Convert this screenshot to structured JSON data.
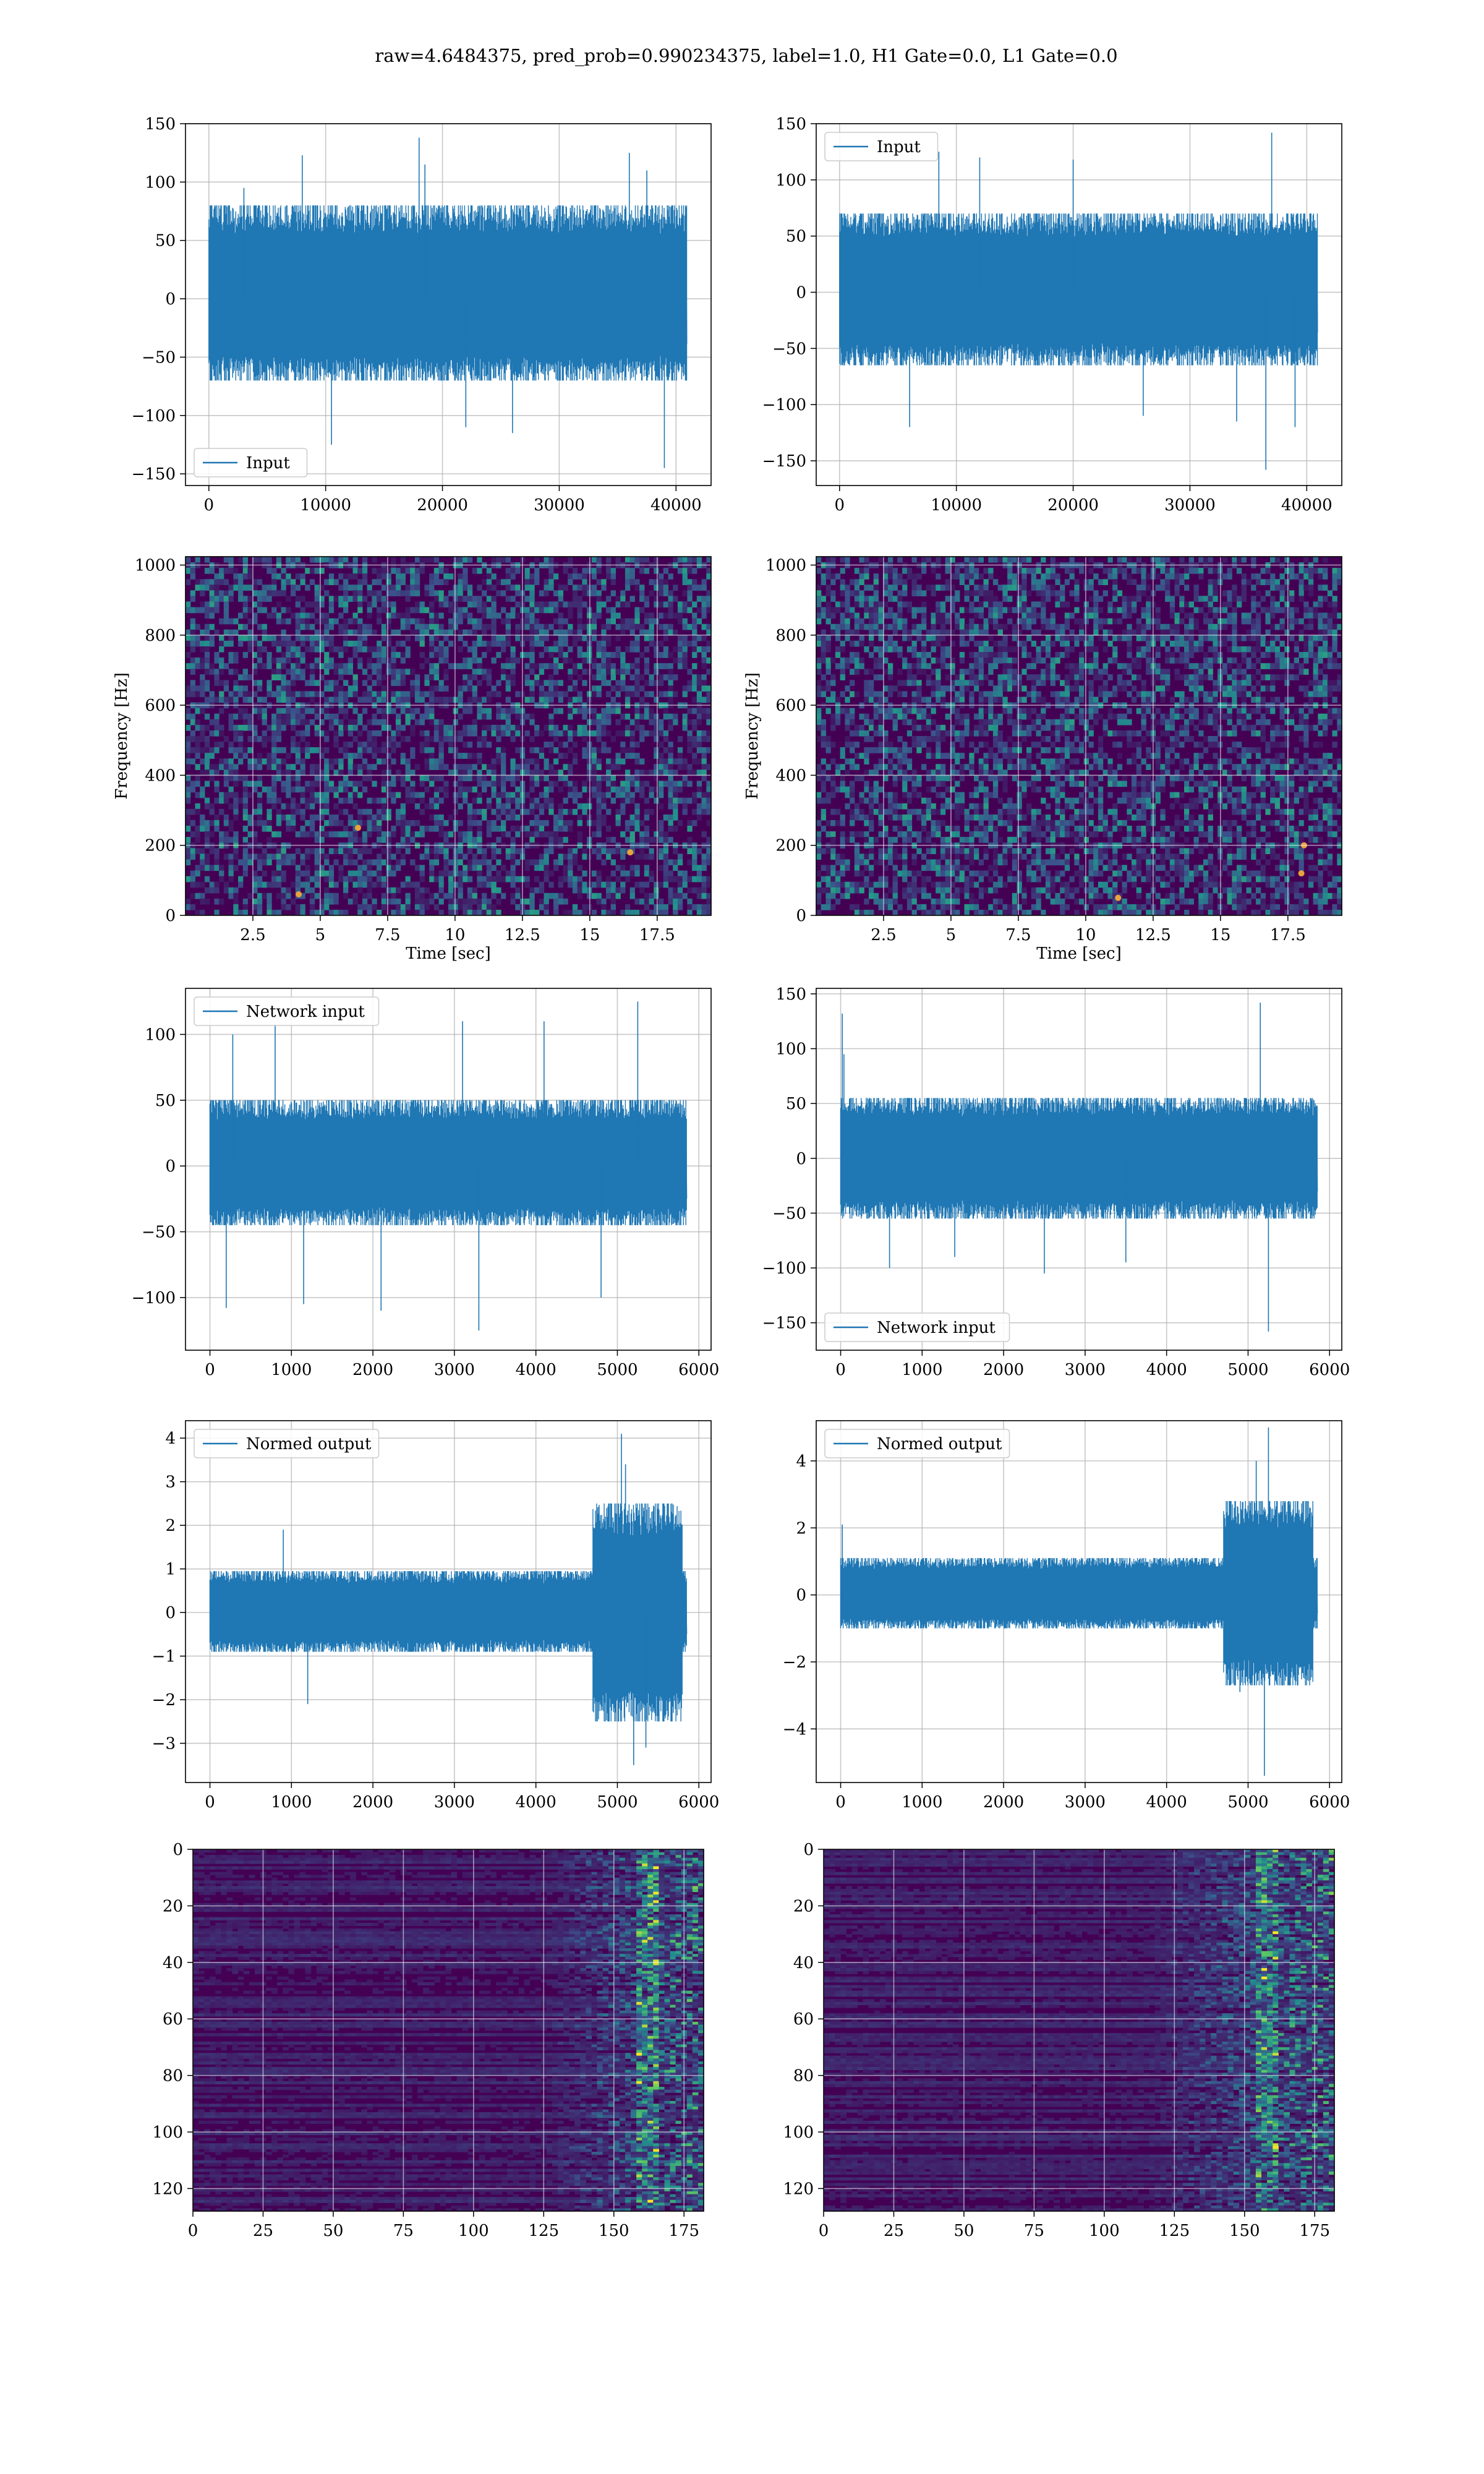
{
  "title": "raw=4.6484375, pred_prob=0.990234375, label=1.0, H1 Gate=0.0, L1 Gate=0.0",
  "colors": {
    "line": "#1f77b4",
    "grid": "#b0b0b0",
    "viridis_low": "#440154",
    "viridis_mid": "#21918c",
    "viridis_high": "#fde725"
  },
  "chart_data": [
    {
      "id": "row1-left",
      "type": "line",
      "legend": "Input",
      "legend_loc": "lower-left",
      "grid": true,
      "xlim": [
        -2000,
        43000
      ],
      "ylim": [
        -160,
        150
      ],
      "xticks": [
        0,
        10000,
        20000,
        30000,
        40000
      ],
      "yticks": [
        -150,
        -100,
        -50,
        0,
        50,
        100,
        150
      ],
      "n_samples": 40960,
      "typical_band": [
        -70,
        80
      ],
      "spikes": [
        [
          3000,
          95
        ],
        [
          8000,
          123
        ],
        [
          10500,
          -125
        ],
        [
          18000,
          138
        ],
        [
          18500,
          115
        ],
        [
          22000,
          -110
        ],
        [
          26000,
          -115
        ],
        [
          36000,
          125
        ],
        [
          37500,
          110
        ],
        [
          39000,
          -145
        ]
      ]
    },
    {
      "id": "row1-right",
      "type": "line",
      "legend": "Input",
      "legend_loc": "upper-left",
      "grid": true,
      "xlim": [
        -2000,
        43000
      ],
      "ylim": [
        -172,
        150
      ],
      "xticks": [
        0,
        10000,
        20000,
        30000,
        40000
      ],
      "yticks": [
        -150,
        -100,
        -50,
        0,
        50,
        100,
        150
      ],
      "n_samples": 40960,
      "typical_band": [
        -65,
        70
      ],
      "spikes": [
        [
          6000,
          -120
        ],
        [
          8500,
          125
        ],
        [
          12000,
          120
        ],
        [
          20000,
          118
        ],
        [
          26000,
          -110
        ],
        [
          34000,
          -115
        ],
        [
          36500,
          -158
        ],
        [
          37000,
          142
        ],
        [
          39000,
          -120
        ]
      ]
    },
    {
      "id": "row2-left",
      "type": "heatmap",
      "xlabel": "Time [sec]",
      "ylabel": "Frequency [Hz]",
      "grid": true,
      "xlim": [
        0,
        19.5
      ],
      "ylim": [
        0,
        1024
      ],
      "xticks": [
        2.5,
        5.0,
        7.5,
        10.0,
        12.5,
        15.0,
        17.5
      ],
      "yticks": [
        0,
        200,
        400,
        600,
        800,
        1000
      ],
      "colormap": "viridis",
      "dark_band_hz": 500,
      "hotspots": [
        [
          6.4,
          250
        ],
        [
          4.2,
          60
        ],
        [
          16.5,
          180
        ]
      ]
    },
    {
      "id": "row2-right",
      "type": "heatmap",
      "xlabel": "Time [sec]",
      "ylabel": "Frequency [Hz]",
      "grid": true,
      "xlim": [
        0,
        19.5
      ],
      "ylim": [
        0,
        1024
      ],
      "xticks": [
        2.5,
        5.0,
        7.5,
        10.0,
        12.5,
        15.0,
        17.5
      ],
      "yticks": [
        0,
        200,
        400,
        600,
        800,
        1000
      ],
      "colormap": "viridis",
      "dark_band_hz": 500,
      "hotspots": [
        [
          11.2,
          50
        ],
        [
          18.0,
          120
        ],
        [
          18.1,
          200
        ]
      ]
    },
    {
      "id": "row3-left",
      "type": "line",
      "legend": "Network input",
      "legend_loc": "upper-left",
      "grid": true,
      "xlim": [
        -300,
        6150
      ],
      "ylim": [
        -140,
        135
      ],
      "xticks": [
        0,
        1000,
        2000,
        3000,
        4000,
        5000,
        6000
      ],
      "yticks": [
        -100,
        -50,
        0,
        50,
        100
      ],
      "n_samples": 5856,
      "typical_band": [
        -45,
        50
      ],
      "spikes": [
        [
          200,
          -108
        ],
        [
          280,
          100
        ],
        [
          800,
          108
        ],
        [
          1150,
          -105
        ],
        [
          2100,
          -110
        ],
        [
          3300,
          -125
        ],
        [
          3100,
          110
        ],
        [
          4100,
          110
        ],
        [
          4800,
          -100
        ],
        [
          5250,
          125
        ]
      ]
    },
    {
      "id": "row3-right",
      "type": "line",
      "legend": "Network input",
      "legend_loc": "lower-left",
      "grid": true,
      "xlim": [
        -300,
        6150
      ],
      "ylim": [
        -175,
        155
      ],
      "xticks": [
        0,
        1000,
        2000,
        3000,
        4000,
        5000,
        6000
      ],
      "yticks": [
        -150,
        -100,
        -50,
        0,
        50,
        100,
        150
      ],
      "n_samples": 5856,
      "typical_band": [
        -55,
        55
      ],
      "spikes": [
        [
          20,
          132
        ],
        [
          40,
          95
        ],
        [
          600,
          -100
        ],
        [
          1400,
          -90
        ],
        [
          2500,
          -105
        ],
        [
          3500,
          -95
        ],
        [
          5150,
          142
        ],
        [
          5250,
          -158
        ]
      ]
    },
    {
      "id": "row4-left",
      "type": "line",
      "legend": "Normed output",
      "legend_loc": "upper-left",
      "grid": true,
      "xlim": [
        -300,
        6150
      ],
      "ylim": [
        -3.9,
        4.4
      ],
      "xticks": [
        0,
        1000,
        2000,
        3000,
        4000,
        5000,
        6000
      ],
      "yticks": [
        -3,
        -2,
        -1,
        0,
        1,
        2,
        3,
        4
      ],
      "n_samples": 5856,
      "typical_band": [
        -0.9,
        0.95
      ],
      "burst": {
        "start": 4700,
        "end": 5800,
        "band": [
          -2.5,
          2.5
        ]
      },
      "spikes": [
        [
          900,
          1.9
        ],
        [
          1200,
          -2.1
        ],
        [
          5050,
          4.1
        ],
        [
          5200,
          -3.5
        ],
        [
          5100,
          3.4
        ],
        [
          5350,
          -3.1
        ]
      ]
    },
    {
      "id": "row4-right",
      "type": "line",
      "legend": "Normed output",
      "legend_loc": "upper-left",
      "grid": true,
      "xlim": [
        -300,
        6150
      ],
      "ylim": [
        -5.6,
        5.2
      ],
      "xticks": [
        0,
        1000,
        2000,
        3000,
        4000,
        5000,
        6000
      ],
      "yticks": [
        -4,
        -2,
        0,
        2,
        4
      ],
      "n_samples": 5856,
      "typical_band": [
        -1.0,
        1.1
      ],
      "burst": {
        "start": 4700,
        "end": 5800,
        "band": [
          -2.7,
          2.8
        ]
      },
      "spikes": [
        [
          20,
          2.1
        ],
        [
          5100,
          4.0
        ],
        [
          5200,
          -5.4
        ],
        [
          5250,
          5.0
        ],
        [
          4900,
          -2.9
        ]
      ]
    },
    {
      "id": "row5-left",
      "type": "heatmap",
      "grid": true,
      "inverted_y": true,
      "xlim": [
        0,
        182
      ],
      "ylim": [
        128,
        0
      ],
      "xticks": [
        0,
        25,
        50,
        75,
        100,
        125,
        150,
        175
      ],
      "yticks": [
        0,
        20,
        40,
        60,
        80,
        100,
        120
      ],
      "colormap": "viridis",
      "active_from_col": 125,
      "peak_col": 162
    },
    {
      "id": "row5-right",
      "type": "heatmap",
      "grid": true,
      "inverted_y": true,
      "xlim": [
        0,
        182
      ],
      "ylim": [
        128,
        0
      ],
      "xticks": [
        0,
        25,
        50,
        75,
        100,
        125,
        150,
        175
      ],
      "yticks": [
        0,
        20,
        40,
        60,
        80,
        100,
        120
      ],
      "colormap": "viridis",
      "active_from_col": 115,
      "peak_col": 158
    }
  ]
}
